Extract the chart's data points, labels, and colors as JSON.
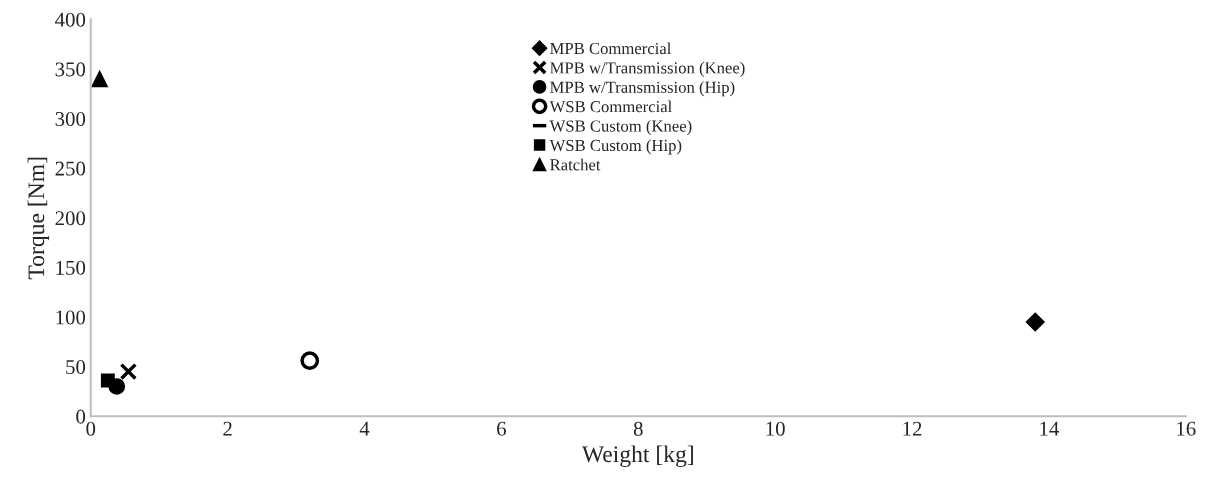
{
  "chart_data": {
    "type": "scatter",
    "xlabel": "Weight [kg]",
    "ylabel": "Torque [Nm]",
    "xlim": [
      0,
      16
    ],
    "xticks": [
      0,
      2,
      4,
      6,
      8,
      10,
      12,
      14,
      16
    ],
    "ylim": [
      0,
      400
    ],
    "yticks": [
      0,
      50,
      100,
      150,
      200,
      250,
      300,
      350,
      400
    ],
    "grid": false,
    "legend": "top",
    "tick_labels": true,
    "series": [
      {
        "name": "MPB Commercial",
        "color": "#000000",
        "marker": "diamond",
        "x": [
          13.8
        ],
        "values": [
          95
        ]
      },
      {
        "name": "MPB w/Transmission (Knee)",
        "color": "#000000",
        "marker": "cross",
        "x": [
          0.55
        ],
        "values": [
          45
        ]
      },
      {
        "name": "MPB w/Transmission (Hip)",
        "color": "#000000",
        "marker": "circle",
        "x": [
          0.38
        ],
        "values": [
          30
        ]
      },
      {
        "name": "WSB Commercial",
        "color": "#ffffff",
        "marker": "circle",
        "x": [
          3.2
        ],
        "values": [
          56
        ]
      },
      {
        "name": "WSB Custom (Knee)",
        "color": "#000000",
        "marker": "dash"
      },
      {
        "name": "WSB Custom (Hip)",
        "color": "#000000",
        "marker": "square",
        "x": [
          0.25
        ],
        "values": [
          36
        ]
      },
      {
        "name": "Ratchet",
        "color": "#000000",
        "marker": "triangle",
        "x": [
          0.13
        ],
        "values": [
          340
        ]
      }
    ]
  }
}
